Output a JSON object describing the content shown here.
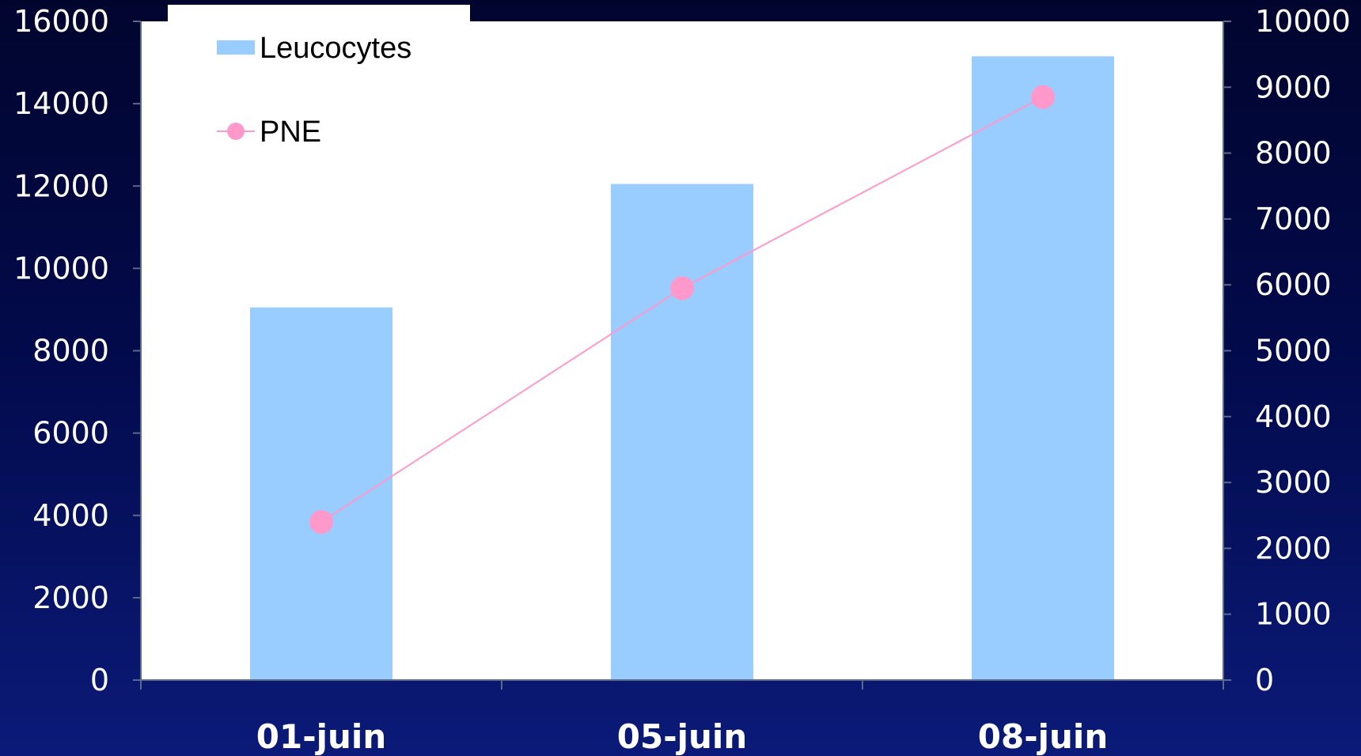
{
  "chart_data": {
    "type": "bar",
    "categories": [
      "01-juin",
      "05-juin",
      "08-juin"
    ],
    "series": [
      {
        "name": "Leucocytes",
        "type": "bar",
        "axis": "left",
        "color": "#99ccff",
        "values": [
          9050,
          12050,
          15150
        ]
      },
      {
        "name": "PNE",
        "type": "line",
        "axis": "right",
        "color": "#ff99cc",
        "values": [
          2400,
          5950,
          8850
        ]
      }
    ],
    "y_left": {
      "range": [
        0,
        16000
      ],
      "ticks": [
        0,
        2000,
        4000,
        6000,
        8000,
        10000,
        12000,
        14000,
        16000
      ]
    },
    "y_right": {
      "range": [
        0,
        10000
      ],
      "ticks": [
        0,
        1000,
        2000,
        3000,
        4000,
        5000,
        6000,
        7000,
        8000,
        9000,
        10000
      ]
    },
    "legend_position": "top-left",
    "grid": false,
    "plot_background": "#ffffff",
    "page_background": "#020a4a"
  }
}
